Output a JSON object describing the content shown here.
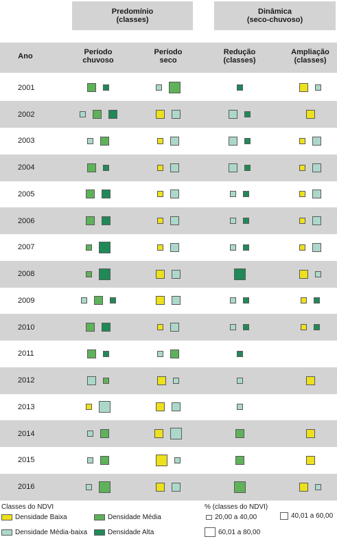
{
  "header": {
    "group_left": {
      "line1": "Predomínio",
      "line2": "(classes)"
    },
    "group_right": {
      "line1": "Dinâmica",
      "line2": "(seco-chuvoso)"
    },
    "columns": {
      "ano": {
        "line1": "Ano",
        "line2": ""
      },
      "chuvoso": {
        "line1": "Período",
        "line2": "chuvoso"
      },
      "seco": {
        "line1": "Período",
        "line2": "seco"
      },
      "reducao": {
        "line1": "Redução",
        "line2": "(classes)"
      },
      "ampliacao": {
        "line1": "Ampliação",
        "line2": "(classes)"
      }
    }
  },
  "colors": {
    "baixa": "#ede01c",
    "media": "#5fb25a",
    "media_baixa": "#acd8cb",
    "alta": "#1f8a58",
    "band": "#d3d3d3"
  },
  "legend": {
    "classes_title": "Classes do NDVI",
    "classes": [
      {
        "key": "baixa",
        "label": "Densidade Baixa"
      },
      {
        "key": "media",
        "label": "Densidade Média"
      },
      {
        "key": "media_baixa",
        "label": "Densidade Média-baixa"
      },
      {
        "key": "alta",
        "label": "Densidade Alta"
      }
    ],
    "size_title": "% (classes do NDVI)",
    "sizes": [
      {
        "level": 1,
        "label": "20,00 a 40,00"
      },
      {
        "level": 2,
        "label": "40,01 a 60,00"
      },
      {
        "level": 3,
        "label": "60,01 a 80,00"
      }
    ]
  },
  "chart_data": {
    "type": "table",
    "size_scale": [
      "20,00 a 40,00",
      "40,01 a 60,00",
      "60,01 a 80,00"
    ],
    "columns": [
      "chuvoso",
      "seco",
      "reducao",
      "ampliacao"
    ],
    "rows": [
      {
        "year": "2001",
        "chuvoso": [
          [
            "media",
            2
          ],
          [
            "alta",
            1
          ]
        ],
        "seco": [
          [
            "media_baixa",
            1
          ],
          [
            "media",
            3
          ]
        ],
        "reducao": [
          [
            "alta",
            1
          ]
        ],
        "ampliacao": [
          [
            "baixa",
            2
          ],
          [
            "media_baixa",
            1
          ]
        ]
      },
      {
        "year": "2002",
        "chuvoso": [
          [
            "media_baixa",
            1
          ],
          [
            "media",
            2
          ],
          [
            "alta",
            2
          ]
        ],
        "seco": [
          [
            "baixa",
            2
          ],
          [
            "media_baixa",
            2
          ]
        ],
        "reducao": [
          [
            "media_baixa",
            2
          ],
          [
            "alta",
            1
          ]
        ],
        "ampliacao": [
          [
            "baixa",
            2
          ]
        ]
      },
      {
        "year": "2003",
        "chuvoso": [
          [
            "media_baixa",
            1
          ],
          [
            "media",
            2
          ]
        ],
        "seco": [
          [
            "baixa",
            1
          ],
          [
            "media_baixa",
            2
          ]
        ],
        "reducao": [
          [
            "media_baixa",
            2
          ],
          [
            "alta",
            1
          ]
        ],
        "ampliacao": [
          [
            "baixa",
            1
          ],
          [
            "media_baixa",
            2
          ]
        ]
      },
      {
        "year": "2004",
        "chuvoso": [
          [
            "media",
            2
          ],
          [
            "alta",
            1
          ]
        ],
        "seco": [
          [
            "baixa",
            1
          ],
          [
            "media_baixa",
            2
          ]
        ],
        "reducao": [
          [
            "media_baixa",
            2
          ],
          [
            "alta",
            1
          ]
        ],
        "ampliacao": [
          [
            "baixa",
            1
          ],
          [
            "media_baixa",
            2
          ]
        ]
      },
      {
        "year": "2005",
        "chuvoso": [
          [
            "media",
            2
          ],
          [
            "alta",
            2
          ]
        ],
        "seco": [
          [
            "baixa",
            1
          ],
          [
            "media_baixa",
            2
          ]
        ],
        "reducao": [
          [
            "media_baixa",
            1
          ],
          [
            "alta",
            1
          ]
        ],
        "ampliacao": [
          [
            "baixa",
            1
          ],
          [
            "media_baixa",
            2
          ]
        ]
      },
      {
        "year": "2006",
        "chuvoso": [
          [
            "media",
            2
          ],
          [
            "alta",
            2
          ]
        ],
        "seco": [
          [
            "baixa",
            1
          ],
          [
            "media_baixa",
            2
          ]
        ],
        "reducao": [
          [
            "media_baixa",
            1
          ],
          [
            "alta",
            1
          ]
        ],
        "ampliacao": [
          [
            "baixa",
            1
          ],
          [
            "media_baixa",
            2
          ]
        ]
      },
      {
        "year": "2007",
        "chuvoso": [
          [
            "media",
            1
          ],
          [
            "alta",
            3
          ]
        ],
        "seco": [
          [
            "baixa",
            1
          ],
          [
            "media_baixa",
            2
          ]
        ],
        "reducao": [
          [
            "media_baixa",
            1
          ],
          [
            "alta",
            1
          ]
        ],
        "ampliacao": [
          [
            "baixa",
            1
          ],
          [
            "media_baixa",
            2
          ]
        ]
      },
      {
        "year": "2008",
        "chuvoso": [
          [
            "media",
            1
          ],
          [
            "alta",
            3
          ]
        ],
        "seco": [
          [
            "baixa",
            2
          ],
          [
            "media_baixa",
            2
          ]
        ],
        "reducao": [
          [
            "alta",
            3
          ]
        ],
        "ampliacao": [
          [
            "baixa",
            2
          ],
          [
            "media_baixa",
            1
          ]
        ]
      },
      {
        "year": "2009",
        "chuvoso": [
          [
            "media_baixa",
            1
          ],
          [
            "media",
            2
          ],
          [
            "alta",
            1
          ]
        ],
        "seco": [
          [
            "baixa",
            2
          ],
          [
            "media_baixa",
            2
          ]
        ],
        "reducao": [
          [
            "media_baixa",
            1
          ],
          [
            "alta",
            1
          ]
        ],
        "ampliacao": [
          [
            "baixa",
            1
          ],
          [
            "alta",
            1
          ]
        ]
      },
      {
        "year": "2010",
        "chuvoso": [
          [
            "media",
            2
          ],
          [
            "alta",
            2
          ]
        ],
        "seco": [
          [
            "baixa",
            1
          ],
          [
            "media_baixa",
            2
          ]
        ],
        "reducao": [
          [
            "media_baixa",
            1
          ],
          [
            "alta",
            1
          ]
        ],
        "ampliacao": [
          [
            "baixa",
            1
          ],
          [
            "alta",
            1
          ]
        ]
      },
      {
        "year": "2011",
        "chuvoso": [
          [
            "media",
            2
          ],
          [
            "alta",
            1
          ]
        ],
        "seco": [
          [
            "media_baixa",
            1
          ],
          [
            "media",
            2
          ]
        ],
        "reducao": [
          [
            "alta",
            1
          ]
        ],
        "ampliacao": []
      },
      {
        "year": "2012",
        "chuvoso": [
          [
            "media_baixa",
            2
          ],
          [
            "media",
            1
          ]
        ],
        "seco": [
          [
            "baixa",
            2
          ],
          [
            "media_baixa",
            1
          ]
        ],
        "reducao": [
          [
            "media_baixa",
            1
          ]
        ],
        "ampliacao": [
          [
            "baixa",
            2
          ]
        ]
      },
      {
        "year": "2013",
        "chuvoso": [
          [
            "baixa",
            1
          ],
          [
            "media_baixa",
            3
          ]
        ],
        "seco": [
          [
            "baixa",
            2
          ],
          [
            "media_baixa",
            2
          ]
        ],
        "reducao": [
          [
            "media_baixa",
            1
          ]
        ],
        "ampliacao": []
      },
      {
        "year": "2014",
        "chuvoso": [
          [
            "media_baixa",
            1
          ],
          [
            "media",
            2
          ]
        ],
        "seco": [
          [
            "baixa",
            2
          ],
          [
            "media_baixa",
            3
          ]
        ],
        "reducao": [
          [
            "media",
            2
          ]
        ],
        "ampliacao": [
          [
            "baixa",
            2
          ]
        ]
      },
      {
        "year": "2015",
        "chuvoso": [
          [
            "media_baixa",
            1
          ],
          [
            "media",
            2
          ]
        ],
        "seco": [
          [
            "baixa",
            3
          ],
          [
            "media_baixa",
            1
          ]
        ],
        "reducao": [
          [
            "media",
            2
          ]
        ],
        "ampliacao": [
          [
            "baixa",
            2
          ]
        ]
      },
      {
        "year": "2016",
        "chuvoso": [
          [
            "media_baixa",
            1
          ],
          [
            "media",
            3
          ]
        ],
        "seco": [
          [
            "baixa",
            2
          ],
          [
            "media_baixa",
            2
          ]
        ],
        "reducao": [
          [
            "media",
            3
          ]
        ],
        "ampliacao": [
          [
            "baixa",
            2
          ],
          [
            "media_baixa",
            1
          ]
        ]
      }
    ]
  }
}
